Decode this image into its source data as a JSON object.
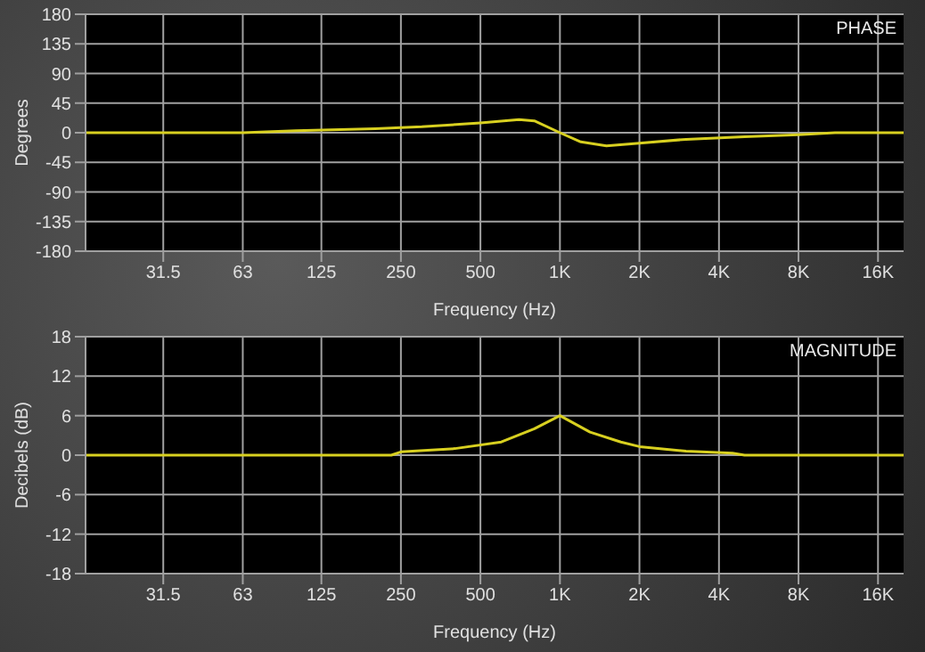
{
  "chart_data": [
    {
      "type": "line",
      "title": "PHASE",
      "xlabel": "Frequency (Hz)",
      "ylabel": "Degrees",
      "log": "x",
      "grid": true,
      "x": [
        16,
        63,
        100,
        200,
        300,
        500,
        700,
        800,
        1000,
        1200,
        1500,
        2000,
        3000,
        5000,
        8000,
        11000,
        20000
      ],
      "series": [
        {
          "color": "#d8d020",
          "values": [
            0,
            0,
            3,
            6,
            9,
            15,
            20,
            18,
            0,
            -14,
            -20,
            -16,
            -10,
            -6,
            -3,
            0,
            0
          ]
        }
      ],
      "xlim": [
        16,
        20000
      ],
      "xticks": [
        31.5,
        63,
        125,
        250,
        500,
        {
          "value": 1000,
          "label": "1K"
        },
        {
          "value": 2000,
          "label": "2K"
        },
        {
          "value": 4000,
          "label": "4K"
        },
        {
          "value": 8000,
          "label": "8K"
        },
        {
          "value": 16000,
          "label": "16K"
        }
      ],
      "ylim": [
        -180,
        180
      ],
      "yticks": [
        -180,
        -135,
        -90,
        -45,
        0,
        45,
        90,
        135,
        180
      ]
    },
    {
      "type": "line",
      "title": "MAGNITUDE",
      "xlabel": "Frequency (Hz)",
      "ylabel": "Decibels (dB)",
      "log": "x",
      "grid": true,
      "x": [
        16,
        230,
        250,
        400,
        600,
        800,
        1000,
        1300,
        1700,
        2000,
        3000,
        4500,
        5000,
        20000
      ],
      "series": [
        {
          "color": "#d8d020",
          "values": [
            0,
            0,
            0.5,
            1,
            2,
            4,
            6,
            3.5,
            2,
            1.3,
            0.6,
            0.3,
            0,
            0
          ]
        }
      ],
      "xlim": [
        16,
        20000
      ],
      "xticks": [
        31.5,
        63,
        125,
        250,
        500,
        {
          "value": 1000,
          "label": "1K"
        },
        {
          "value": 2000,
          "label": "2K"
        },
        {
          "value": 4000,
          "label": "4K"
        },
        {
          "value": 8000,
          "label": "8K"
        },
        {
          "value": 16000,
          "label": "16K"
        }
      ],
      "ylim": [
        -18,
        18
      ],
      "yticks": [
        -18,
        -12,
        -6,
        0,
        6,
        12,
        18
      ]
    }
  ]
}
